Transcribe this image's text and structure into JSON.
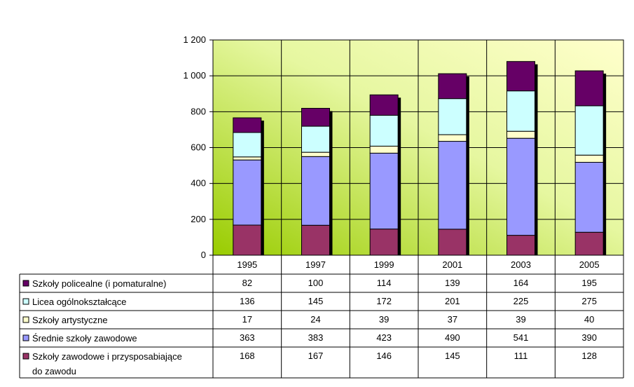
{
  "chart_data": {
    "type": "bar",
    "stacked": true,
    "categories": [
      "1995",
      "1997",
      "1999",
      "2001",
      "2003",
      "2005"
    ],
    "ylim": [
      0,
      1200
    ],
    "yticks": [
      0,
      200,
      400,
      600,
      800,
      1000,
      1200
    ],
    "ytick_labels": [
      "0",
      "200",
      "400",
      "600",
      "800",
      "1 000",
      "1 200"
    ],
    "grid": true,
    "legend_placement": "data-table-below",
    "title": "",
    "xlabel": "",
    "ylabel": "",
    "series": [
      {
        "name": "Szkoły zawodowe i przysposabiające do zawodu",
        "label_lines": [
          "Szkoły zawodowe i przysposabiające",
          "do zawodu"
        ],
        "color": "#993366",
        "values": [
          168,
          167,
          146,
          145,
          111,
          128
        ]
      },
      {
        "name": "Średnie szkoły zawodowe",
        "label_lines": [
          "Średnie szkoły zawodowe"
        ],
        "color": "#9999ff",
        "values": [
          363,
          383,
          423,
          490,
          541,
          390
        ]
      },
      {
        "name": "Szkoły artystyczne",
        "label_lines": [
          "Szkoły artystyczne"
        ],
        "color": "#ffffcc",
        "values": [
          17,
          24,
          39,
          37,
          39,
          40
        ]
      },
      {
        "name": "Licea ogólnokształcące",
        "label_lines": [
          "Licea ogólnokształcące"
        ],
        "color": "#ccffff",
        "values": [
          136,
          145,
          172,
          201,
          225,
          275
        ]
      },
      {
        "name": "Szkoły policealne (i pomaturalne)",
        "label_lines": [
          "Szkoły policealne (i pomaturalne)"
        ],
        "color": "#660066",
        "values": [
          82,
          100,
          114,
          139,
          164,
          195
        ]
      }
    ],
    "table_row_order": [
      4,
      3,
      2,
      1,
      0
    ]
  }
}
